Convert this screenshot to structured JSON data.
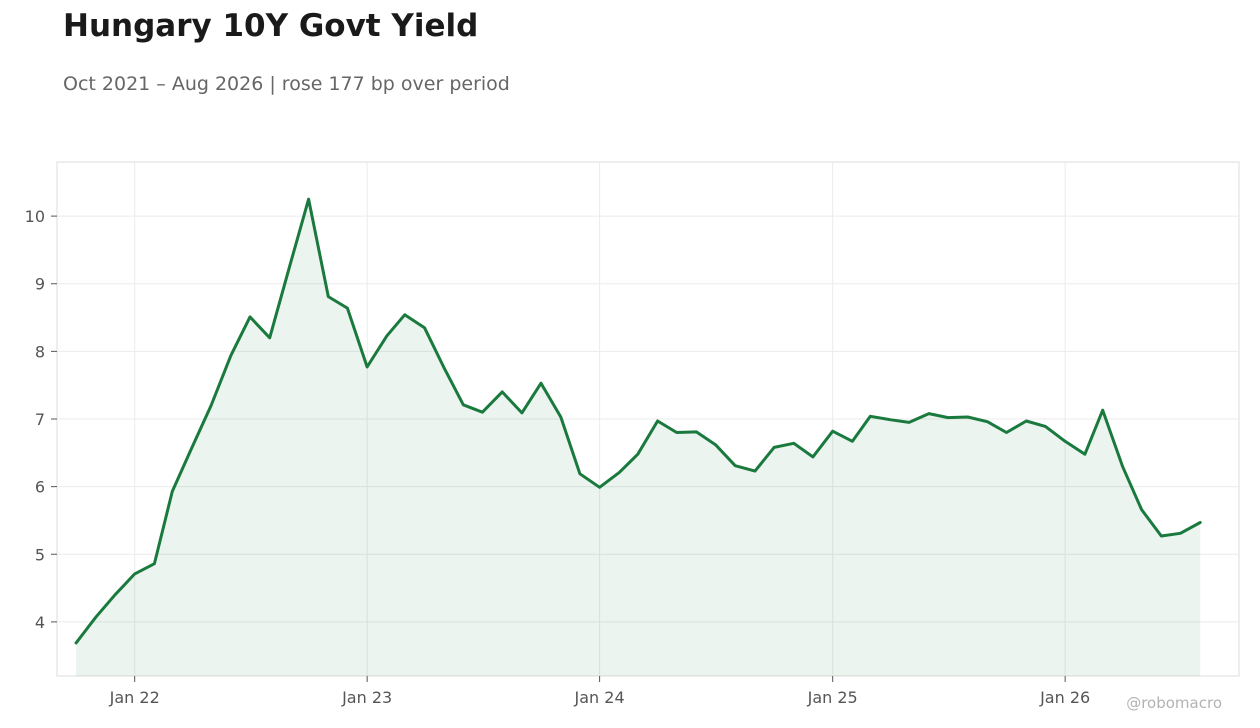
{
  "header": {
    "title": "Hungary 10Y Govt Yield",
    "subtitle": "Oct 2021 – Aug 2026 | rose 177 bp over period"
  },
  "credit": "@robomacro",
  "colors": {
    "line": "#1a7a3e",
    "fill": "#1a7a3e",
    "grid": "#ebebeb",
    "frame": "#dddddd"
  },
  "chart_data": {
    "type": "area",
    "xlabel": "",
    "ylabel": "",
    "x_range": [
      "2021-09-01",
      "2026-10-01"
    ],
    "ylim": [
      3.2,
      10.8
    ],
    "grid": true,
    "x_ticks": [
      {
        "date": "2022-01-01",
        "label": "Jan 22"
      },
      {
        "date": "2023-01-01",
        "label": "Jan 23"
      },
      {
        "date": "2024-01-01",
        "label": "Jan 24"
      },
      {
        "date": "2025-01-01",
        "label": "Jan 25"
      },
      {
        "date": "2026-01-01",
        "label": "Jan 26"
      }
    ],
    "y_ticks": [
      4,
      5,
      6,
      7,
      8,
      9,
      10
    ],
    "series": [
      {
        "x": [
          "2021-10",
          "2021-11",
          "2021-12",
          "2022-01",
          "2022-02",
          "2022-03",
          "2022-04",
          "2022-05",
          "2022-06",
          "2022-07",
          "2022-08",
          "2022-09",
          "2022-10",
          "2022-11",
          "2022-12",
          "2023-01",
          "2023-02",
          "2023-03",
          "2023-04",
          "2023-05",
          "2023-06",
          "2023-07",
          "2023-08",
          "2023-09",
          "2023-10",
          "2023-11",
          "2023-12",
          "2024-01",
          "2024-02",
          "2024-03",
          "2024-04",
          "2024-05",
          "2024-06",
          "2024-07",
          "2024-08",
          "2024-09",
          "2024-10",
          "2024-11",
          "2024-12",
          "2025-01",
          "2025-02",
          "2025-03",
          "2025-04",
          "2025-05",
          "2025-06",
          "2025-07",
          "2025-08",
          "2025-09",
          "2025-10",
          "2025-11",
          "2025-12",
          "2026-01",
          "2026-02",
          "2026-03",
          "2026-04",
          "2026-05",
          "2026-06",
          "2026-07",
          "2026-08"
        ],
        "values": [
          3.69,
          4.07,
          4.4,
          4.71,
          4.86,
          5.93,
          6.58,
          7.2,
          7.94,
          8.51,
          8.2,
          9.25,
          10.25,
          8.81,
          8.64,
          7.77,
          8.23,
          8.54,
          8.35,
          7.77,
          7.21,
          7.1,
          7.4,
          7.09,
          7.53,
          7.03,
          6.19,
          5.99,
          6.21,
          6.48,
          6.97,
          6.8,
          6.81,
          6.62,
          6.31,
          6.23,
          6.58,
          6.64,
          6.44,
          6.82,
          6.67,
          7.04,
          6.99,
          6.95,
          7.08,
          7.02,
          7.03,
          6.96,
          6.8,
          6.97,
          6.89,
          6.67,
          6.48,
          7.13,
          6.3,
          5.66,
          5.27,
          5.31,
          5.47
        ]
      }
    ]
  }
}
